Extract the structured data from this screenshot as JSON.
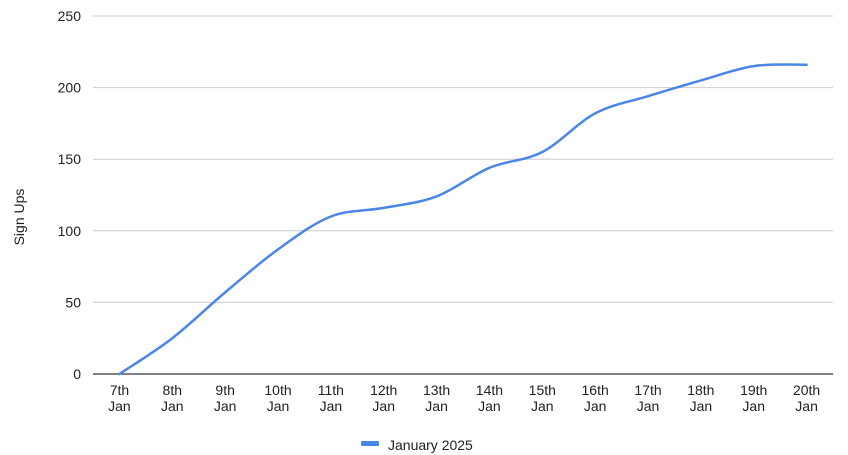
{
  "chart_data": {
    "type": "line",
    "xlabel": "",
    "ylabel": "Sign Ups",
    "ylim": [
      0,
      250
    ],
    "yticks": [
      0,
      50,
      100,
      150,
      200,
      250
    ],
    "grid": true,
    "legend_position": "bottom",
    "categories": [
      [
        "7th",
        "Jan"
      ],
      [
        "8th",
        "Jan"
      ],
      [
        "9th",
        "Jan"
      ],
      [
        "10th",
        "Jan"
      ],
      [
        "11th",
        "Jan"
      ],
      [
        "12th",
        "Jan"
      ],
      [
        "13th",
        "Jan"
      ],
      [
        "14th",
        "Jan"
      ],
      [
        "15th",
        "Jan"
      ],
      [
        "16th",
        "Jan"
      ],
      [
        "17th",
        "Jan"
      ],
      [
        "18th",
        "Jan"
      ],
      [
        "19th",
        "Jan"
      ],
      [
        "20th",
        "Jan"
      ]
    ],
    "series": [
      {
        "name": "January 2025",
        "color": "#4a86e8",
        "values": [
          0,
          25,
          57,
          87,
          110,
          116,
          124,
          144,
          155,
          182,
          194,
          205,
          215,
          216
        ]
      }
    ]
  }
}
